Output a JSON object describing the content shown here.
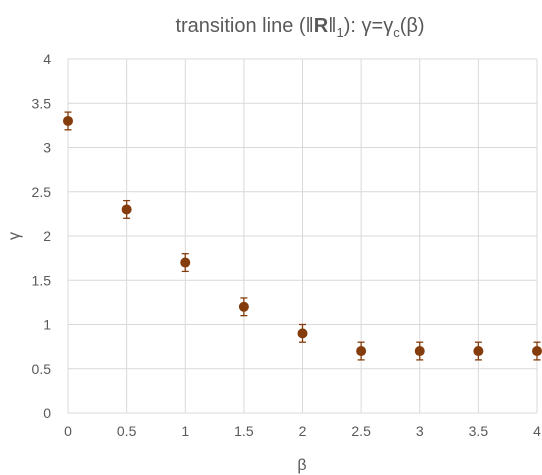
{
  "chart_data": {
    "type": "scatter",
    "title": {
      "prefix": "transition line (",
      "norm_open": "‖",
      "norm_symbol": "R",
      "norm_close": "‖",
      "norm_sub": "1",
      "middle": "): γ=γ",
      "gamma_sub": "c",
      "suffix": "(β)"
    },
    "xlabel": "β",
    "ylabel": "γ",
    "xlim": [
      0,
      4
    ],
    "ylim": [
      0,
      4
    ],
    "x_ticks": [
      "0",
      "0.5",
      "1",
      "1.5",
      "2",
      "2.5",
      "3",
      "3.5",
      "4"
    ],
    "y_ticks": [
      "0",
      "0.5",
      "1",
      "1.5",
      "2",
      "2.5",
      "3",
      "3.5",
      "4"
    ],
    "grid": true,
    "color": "#843c0c",
    "series": [
      {
        "x": [
          0,
          0.5,
          1,
          1.5,
          2,
          2.5,
          3,
          3.5,
          4
        ],
        "y": [
          3.3,
          2.3,
          1.7,
          1.2,
          0.9,
          0.7,
          0.7,
          0.7,
          0.7
        ],
        "error": [
          0.1,
          0.1,
          0.1,
          0.1,
          0.1,
          0.1,
          0.1,
          0.1,
          0.1
        ]
      }
    ]
  }
}
